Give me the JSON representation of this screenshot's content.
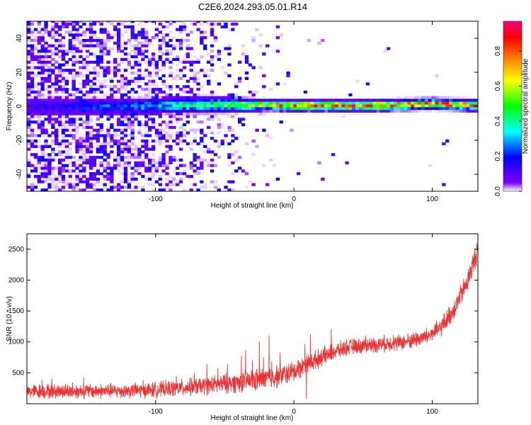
{
  "title": "C2E6.2024.293.05.01.R14",
  "chart_data": [
    {
      "type": "heatmap",
      "xlabel": "Height of straight line (km)",
      "ylabel": "Frequency (Hz)",
      "xlim": [
        -193,
        133
      ],
      "ylim": [
        -50,
        50
      ],
      "xticks": [
        -100,
        0,
        100
      ],
      "yticks": [
        -40,
        -20,
        0,
        20,
        40
      ],
      "colorbar": {
        "label": "Normalized spectral amplitude",
        "range": [
          0,
          0.97
        ],
        "ticks": [
          0.0,
          0.2,
          0.4,
          0.6,
          0.8
        ],
        "tick_labels": [
          "0.0",
          "0.2",
          "0.4",
          "0.6",
          "0.8"
        ],
        "colormap": [
          "#ffffff",
          "#8000ff",
          "#0000ff",
          "#00ffff",
          "#00ff00",
          "#ffff00",
          "#ff8000",
          "#ff0000",
          "#ff0080"
        ]
      },
      "band": {
        "center_hz": [
          [
            -193,
            0
          ],
          [
            -120,
            0
          ],
          [
            -60,
            1
          ],
          [
            0,
            0.5
          ],
          [
            60,
            0.5
          ],
          [
            100,
            1.5
          ],
          [
            133,
            0.5
          ]
        ],
        "half_width_hz": [
          [
            -193,
            3
          ],
          [
            -120,
            3
          ],
          [
            -60,
            3
          ],
          [
            -20,
            2
          ],
          [
            133,
            2
          ]
        ],
        "peak_amplitude": [
          [
            -193,
            0.15
          ],
          [
            -120,
            0.3
          ],
          [
            -80,
            0.45
          ],
          [
            -40,
            0.6
          ],
          [
            -20,
            0.75
          ],
          [
            0,
            0.9
          ],
          [
            133,
            0.95
          ]
        ]
      },
      "noise_density": [
        [
          -193,
          0.65
        ],
        [
          -120,
          0.55
        ],
        [
          -70,
          0.3
        ],
        [
          -40,
          0.12
        ],
        [
          -20,
          0.05
        ],
        [
          0,
          0.01
        ],
        [
          133,
          0
        ]
      ]
    },
    {
      "type": "line",
      "xlabel": "Height of straight line (km)",
      "ylabel": "SNR (10 * v/v)",
      "xlim": [
        -193,
        133
      ],
      "ylim": [
        0,
        2750
      ],
      "xticks": [
        -100,
        0,
        100
      ],
      "yticks": [
        500,
        1000,
        1500,
        2000,
        2500
      ],
      "series": [
        {
          "color": "#ee3030",
          "trend": [
            [
              -193,
              200
            ],
            [
              -150,
              205
            ],
            [
              -120,
              210
            ],
            [
              -100,
              225
            ],
            [
              -80,
              260
            ],
            [
              -60,
              300
            ],
            [
              -40,
              350
            ],
            [
              -20,
              400
            ],
            [
              -10,
              460
            ],
            [
              0,
              520
            ],
            [
              10,
              650
            ],
            [
              20,
              750
            ],
            [
              30,
              850
            ],
            [
              40,
              920
            ],
            [
              60,
              960
            ],
            [
              80,
              1000
            ],
            [
              95,
              1080
            ],
            [
              105,
              1200
            ],
            [
              115,
              1500
            ],
            [
              125,
              1950
            ],
            [
              133,
              2500
            ]
          ],
          "noise_amplitude": [
            [
              -193,
              140
            ],
            [
              -120,
              140
            ],
            [
              -60,
              170
            ],
            [
              -20,
              230
            ],
            [
              0,
              200
            ],
            [
              40,
              150
            ],
            [
              80,
              150
            ],
            [
              100,
              170
            ],
            [
              133,
              230
            ]
          ],
          "spikes": [
            [
              -182,
              380
            ],
            [
              -175,
              400
            ],
            [
              -167,
              290
            ],
            [
              -160,
              340
            ],
            [
              -152,
              420
            ],
            [
              -130,
              290
            ],
            [
              -115,
              300
            ],
            [
              -109,
              380
            ],
            [
              -95,
              320
            ],
            [
              -85,
              450
            ],
            [
              -72,
              500
            ],
            [
              -63,
              640
            ],
            [
              -55,
              570
            ],
            [
              -48,
              640
            ],
            [
              -46,
              400
            ],
            [
              -38,
              770
            ],
            [
              -35,
              870
            ],
            [
              -30,
              700
            ],
            [
              -25,
              1000
            ],
            [
              -22,
              750
            ],
            [
              -18,
              1100
            ],
            [
              -16,
              680
            ],
            [
              -10,
              820
            ],
            [
              3,
              700
            ],
            [
              8,
              960
            ],
            [
              9,
              80
            ],
            [
              12,
              1120
            ],
            [
              20,
              860
            ],
            [
              27,
              1200
            ],
            [
              52,
              1100
            ],
            [
              72,
              1110
            ]
          ]
        }
      ]
    }
  ]
}
